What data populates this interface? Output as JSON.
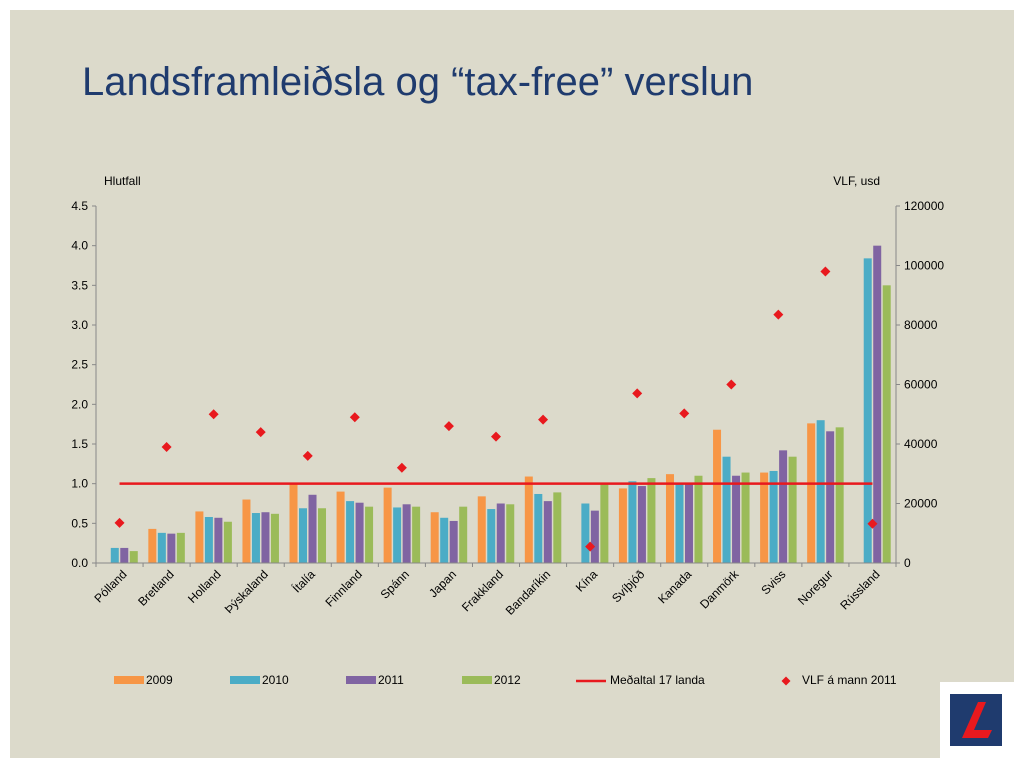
{
  "slide": {
    "title": "Landsframleiðsla og “tax-free” verslun"
  },
  "colors": {
    "background": "#dcdacb",
    "title": "#1f3b6e",
    "s2009": "#f79646",
    "s2010": "#4bacc6",
    "s2011": "#8064a2",
    "s2012": "#9bbb59",
    "average": "#e8191e",
    "gdp": "#e8191e"
  },
  "chart_data": {
    "type": "bar",
    "title": "",
    "ylabel": "Hlutfall",
    "y2label": "VLF, usd",
    "ylim": [
      0,
      4.5
    ],
    "y2lim": [
      0,
      120000
    ],
    "yticks": [
      "0.0",
      "0.5",
      "1.0",
      "1.5",
      "2.0",
      "2.5",
      "3.0",
      "3.5",
      "4.0",
      "4.5"
    ],
    "y2ticks": [
      "0",
      "20000",
      "40000",
      "60000",
      "80000",
      "100000",
      "120000"
    ],
    "grid": false,
    "legend_position": "bottom",
    "categories": [
      "Pólland",
      "Bretland",
      "Holland",
      "Þýskaland",
      "Ítalía",
      "Finnland",
      "Spánn",
      "Japan",
      "Frakkland",
      "Bandaríkin",
      "Kína",
      "Svíþjóð",
      "Kanada",
      "Danmörk",
      "Sviss",
      "Noregur",
      "Rússland"
    ],
    "series": [
      {
        "name": "2009",
        "type": "bar",
        "values": [
          null,
          0.43,
          0.65,
          0.8,
          1.0,
          0.9,
          0.95,
          0.64,
          0.84,
          1.09,
          null,
          0.94,
          1.12,
          1.68,
          1.14,
          1.76,
          null
        ]
      },
      {
        "name": "2010",
        "type": "bar",
        "values": [
          0.19,
          0.38,
          0.58,
          0.63,
          0.69,
          0.78,
          0.7,
          0.57,
          0.68,
          0.87,
          0.75,
          1.03,
          1.0,
          1.34,
          1.16,
          1.8,
          3.84
        ]
      },
      {
        "name": "2011",
        "type": "bar",
        "values": [
          0.19,
          0.37,
          0.57,
          0.64,
          0.86,
          0.76,
          0.74,
          0.53,
          0.75,
          0.78,
          0.66,
          0.97,
          1.0,
          1.1,
          1.42,
          1.66,
          4.0
        ]
      },
      {
        "name": "2012",
        "type": "bar",
        "values": [
          0.15,
          0.38,
          0.52,
          0.62,
          0.69,
          0.71,
          0.71,
          0.71,
          0.74,
          0.89,
          1.0,
          1.07,
          1.1,
          1.14,
          1.34,
          1.71,
          3.5
        ]
      },
      {
        "name": "Meðaltal 17 landa",
        "type": "line",
        "values": [
          1.0,
          1.0,
          1.0,
          1.0,
          1.0,
          1.0,
          1.0,
          1.0,
          1.0,
          1.0,
          1.0,
          1.0,
          1.0,
          1.0,
          1.0,
          1.0,
          1.0
        ]
      },
      {
        "name": "VLF á mann 2011",
        "type": "scatter",
        "axis": "secondary",
        "values": [
          13500,
          39000,
          50000,
          44000,
          36000,
          49000,
          32000,
          46000,
          42500,
          48200,
          5500,
          57000,
          50300,
          60000,
          83500,
          98000,
          13200
        ]
      }
    ]
  }
}
